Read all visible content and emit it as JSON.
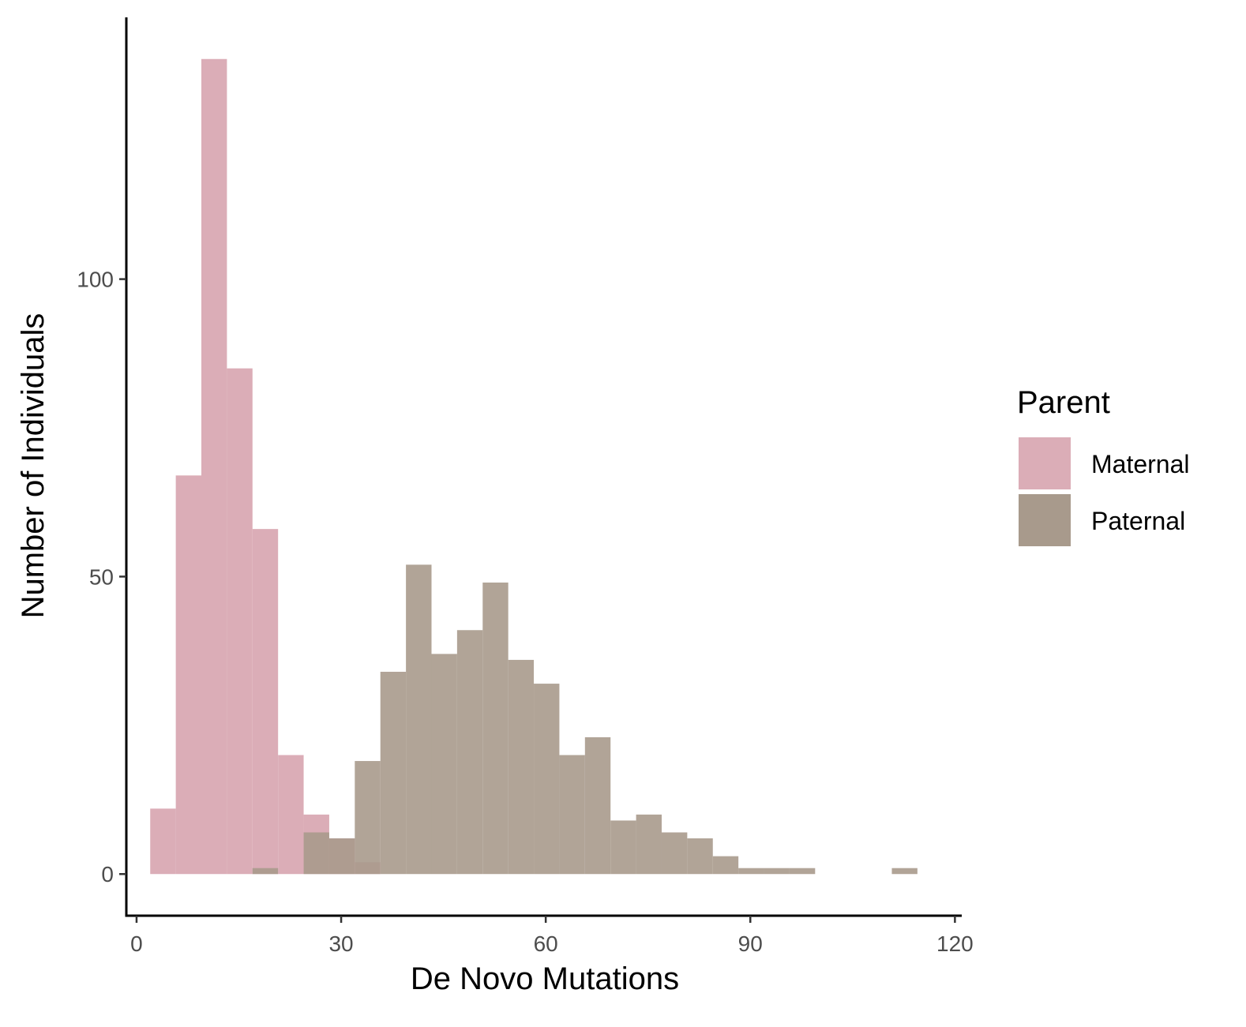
{
  "chart_data": {
    "type": "bar",
    "subtype": "overlapping-histogram",
    "xlabel": "De Novo Mutations",
    "ylabel": "Number of Individuals",
    "xlim": [
      -1.5,
      121
    ],
    "ylim": [
      -7,
      144
    ],
    "x_ticks": [
      0,
      30,
      60,
      90,
      120
    ],
    "x_tick_labels": [
      "0",
      "30",
      "60",
      "90",
      "120"
    ],
    "y_ticks": [
      0,
      50,
      100
    ],
    "y_tick_labels": [
      "0",
      "50",
      "100"
    ],
    "bin_width": 3.75,
    "grid": false,
    "legend": {
      "title": "Parent",
      "position": "right"
    },
    "series": [
      {
        "name": "Maternal",
        "color": "#dbadb7",
        "bins": [
          {
            "x0": 2.0,
            "x1": 5.75,
            "count": 11
          },
          {
            "x0": 5.75,
            "x1": 9.5,
            "count": 67
          },
          {
            "x0": 9.5,
            "x1": 13.25,
            "count": 137
          },
          {
            "x0": 13.25,
            "x1": 17.0,
            "count": 85
          },
          {
            "x0": 17.0,
            "x1": 20.75,
            "count": 58
          },
          {
            "x0": 20.75,
            "x1": 24.5,
            "count": 20
          },
          {
            "x0": 24.5,
            "x1": 28.25,
            "count": 10
          },
          {
            "x0": 28.25,
            "x1": 32.0,
            "count": 6
          },
          {
            "x0": 32.0,
            "x1": 35.75,
            "count": 2
          }
        ]
      },
      {
        "name": "Paternal",
        "color": "#a89a8c",
        "bins": [
          {
            "x0": 17.0,
            "x1": 20.75,
            "count": 1
          },
          {
            "x0": 24.5,
            "x1": 28.25,
            "count": 7
          },
          {
            "x0": 28.25,
            "x1": 32.0,
            "count": 6
          },
          {
            "x0": 32.0,
            "x1": 35.75,
            "count": 19
          },
          {
            "x0": 35.75,
            "x1": 39.5,
            "count": 34
          },
          {
            "x0": 39.5,
            "x1": 43.25,
            "count": 52
          },
          {
            "x0": 43.25,
            "x1": 47.0,
            "count": 37
          },
          {
            "x0": 47.0,
            "x1": 50.75,
            "count": 41
          },
          {
            "x0": 50.75,
            "x1": 54.5,
            "count": 49
          },
          {
            "x0": 54.5,
            "x1": 58.25,
            "count": 36
          },
          {
            "x0": 58.25,
            "x1": 62.0,
            "count": 32
          },
          {
            "x0": 62.0,
            "x1": 65.75,
            "count": 20
          },
          {
            "x0": 65.75,
            "x1": 69.5,
            "count": 23
          },
          {
            "x0": 69.5,
            "x1": 73.25,
            "count": 9
          },
          {
            "x0": 73.25,
            "x1": 77.0,
            "count": 10
          },
          {
            "x0": 77.0,
            "x1": 80.75,
            "count": 7
          },
          {
            "x0": 80.75,
            "x1": 84.5,
            "count": 6
          },
          {
            "x0": 84.5,
            "x1": 88.25,
            "count": 3
          },
          {
            "x0": 88.25,
            "x1": 92.0,
            "count": 1
          },
          {
            "x0": 92.0,
            "x1": 95.75,
            "count": 1
          },
          {
            "x0": 95.75,
            "x1": 99.5,
            "count": 1
          },
          {
            "x0": 110.75,
            "x1": 114.5,
            "count": 1
          }
        ]
      }
    ]
  }
}
